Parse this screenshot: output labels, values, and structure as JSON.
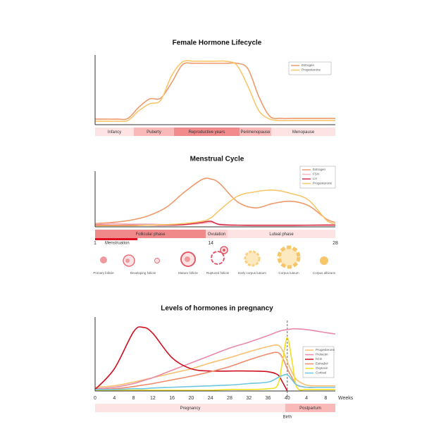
{
  "chart_data": [
    {
      "type": "line",
      "title": "Female Hormone Lifecycle",
      "categories": [
        null,
        null,
        null,
        null,
        null,
        null,
        null,
        null,
        null,
        null,
        null,
        null,
        null,
        null,
        null,
        null,
        null,
        null,
        null,
        null,
        null,
        null,
        null
      ],
      "series": [
        {
          "name": "Estrogen",
          "color": "#ee9a6c",
          "values": [
            8,
            8,
            8,
            9,
            25,
            37,
            38,
            60,
            86,
            88,
            88,
            88,
            88,
            88,
            80,
            40,
            12,
            9,
            9,
            9,
            9,
            9,
            9
          ]
        },
        {
          "name": "Progesterone",
          "color": "#f8c66a",
          "values": [
            5,
            5,
            5,
            6,
            20,
            30,
            35,
            70,
            90,
            91,
            91,
            91,
            91,
            85,
            55,
            20,
            8,
            6,
            6,
            6,
            6,
            6,
            6
          ]
        }
      ],
      "ylim": [
        0,
        100
      ],
      "phases": [
        "Infancy",
        "Puberty",
        "Reproductive years",
        "Perimenopause",
        "Menopause"
      ]
    },
    {
      "type": "line",
      "title": "Menstrual Cycle",
      "x": [
        1,
        3,
        5,
        7,
        9,
        11,
        13,
        14,
        15,
        17,
        19,
        21,
        23,
        25,
        27,
        28
      ],
      "series": [
        {
          "name": "Estrogen",
          "color": "#ee9a6c",
          "values": [
            6,
            8,
            12,
            20,
            35,
            62,
            85,
            86,
            78,
            45,
            34,
            42,
            46,
            38,
            14,
            8
          ]
        },
        {
          "name": "FSH",
          "color": "#f4b6c2",
          "values": [
            4,
            6,
            5,
            5,
            4,
            4,
            6,
            8,
            5,
            3,
            2,
            2,
            2,
            3,
            4,
            4
          ]
        },
        {
          "name": "LH",
          "color": "#d9304a",
          "values": [
            3,
            3,
            3,
            3,
            3,
            4,
            8,
            10,
            4,
            3,
            3,
            3,
            3,
            3,
            3,
            3
          ]
        },
        {
          "name": "Progesterone",
          "color": "#f8c66a",
          "values": [
            2,
            2,
            2,
            3,
            4,
            6,
            10,
            16,
            30,
            55,
            63,
            66,
            60,
            48,
            12,
            5
          ]
        }
      ],
      "xlim": [
        1,
        28
      ],
      "xticks": [
        1,
        14,
        28
      ],
      "ylim": [
        0,
        100
      ],
      "phases": [
        "Follicular phase",
        "Ovulation",
        "Luteal phase"
      ],
      "annotation": "Menstruation",
      "stages": [
        "Primary follicle",
        "Developing follicle",
        "Mature follicle",
        "Ruptured follicle",
        "Early corpus luteum",
        "Corpus luteum",
        "Corpus albicans"
      ]
    },
    {
      "type": "line",
      "title": "Levels of hormones in pregnancy",
      "x": [
        0,
        4,
        8,
        10,
        12,
        16,
        20,
        24,
        28,
        32,
        36,
        38,
        39,
        40,
        41,
        42,
        44,
        46,
        48,
        50
      ],
      "series": [
        {
          "name": "Progesterone",
          "color": "#f8c070",
          "values": [
            5,
            7,
            12,
            15,
            18,
            24,
            30,
            38,
            45,
            53,
            60,
            62,
            55,
            40,
            25,
            15,
            8,
            7,
            7,
            7
          ]
        },
        {
          "name": "Prolactin",
          "color": "#e88aa8",
          "values": [
            3,
            5,
            10,
            14,
            18,
            28,
            38,
            48,
            58,
            66,
            75,
            80,
            82,
            83,
            84,
            84,
            83,
            81,
            79,
            77
          ]
        },
        {
          "name": "hCG",
          "color": "#cc1020",
          "values": [
            2,
            30,
            80,
            86,
            78,
            45,
            30,
            27,
            27,
            27,
            26,
            22,
            12,
            0,
            null,
            null,
            null,
            null,
            null,
            null
          ]
        },
        {
          "name": "Estradiol",
          "color": "#f08a6a",
          "values": [
            2,
            3,
            6,
            8,
            10,
            15,
            20,
            26,
            33,
            42,
            50,
            52,
            45,
            30,
            18,
            8,
            5,
            5,
            5,
            5
          ]
        },
        {
          "name": "Oxytocin",
          "color": "#f2e020",
          "values": [
            1,
            1,
            1,
            1,
            1,
            1,
            1,
            1,
            2,
            2,
            3,
            8,
            40,
            72,
            40,
            5,
            2,
            2,
            2,
            2
          ]
        },
        {
          "name": "Cortisol",
          "color": "#6ec6e0",
          "values": [
            2,
            2,
            3,
            3,
            4,
            5,
            6,
            7,
            8,
            10,
            12,
            18,
            21,
            22,
            15,
            8,
            5,
            5,
            5,
            5
          ]
        }
      ],
      "xlim": [
        0,
        50
      ],
      "xticks": [
        0,
        4,
        8,
        12,
        16,
        20,
        24,
        28,
        32,
        36,
        40,
        {
          "value": 44,
          "label": "4"
        },
        {
          "value": 48,
          "label": "8"
        }
      ],
      "xlabel": "Weeks",
      "ylim": [
        0,
        100
      ],
      "phases": [
        "Pregnancy",
        "Postpartum"
      ],
      "marker": {
        "x": 40,
        "label": "Birth"
      }
    }
  ]
}
